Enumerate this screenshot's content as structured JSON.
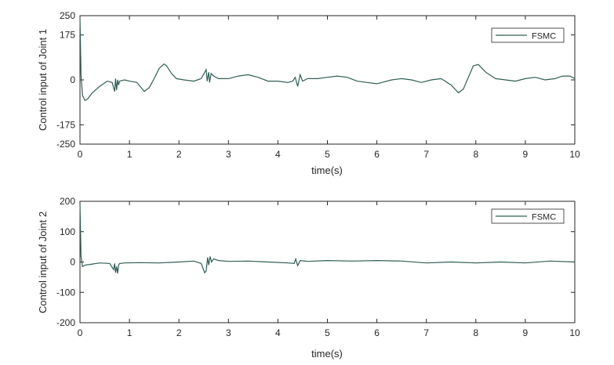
{
  "chart_data": [
    {
      "type": "line",
      "xlabel": "time(s)",
      "ylabel": "Control input of Joint 1",
      "xlim": [
        0,
        10
      ],
      "ylim": [
        -250,
        250
      ],
      "xticks": [
        "0",
        "1",
        "2",
        "3",
        "4",
        "5",
        "6",
        "7",
        "8",
        "9",
        "10"
      ],
      "yticks": [
        "250",
        "175",
        "0",
        "-175",
        "-250"
      ],
      "ytick_values": [
        250,
        175,
        0,
        -175,
        -250
      ],
      "legend_position": "top-right",
      "series": [
        {
          "name": "FSMC",
          "color": "#2e5f55",
          "x": [
            0,
            0.02,
            0.05,
            0.1,
            0.15,
            0.25,
            0.4,
            0.55,
            0.65,
            0.7,
            0.72,
            0.74,
            0.76,
            0.78,
            0.8,
            0.9,
            1.0,
            1.15,
            1.3,
            1.4,
            1.5,
            1.6,
            1.7,
            1.75,
            1.85,
            1.95,
            2.1,
            2.3,
            2.45,
            2.55,
            2.57,
            2.6,
            2.62,
            2.65,
            2.7,
            2.8,
            3.0,
            3.2,
            3.4,
            3.6,
            3.8,
            4.0,
            4.2,
            4.3,
            4.35,
            4.4,
            4.45,
            4.5,
            4.6,
            4.8,
            5.0,
            5.2,
            5.4,
            5.6,
            5.8,
            6.0,
            6.1,
            6.3,
            6.5,
            6.7,
            6.9,
            7.1,
            7.3,
            7.5,
            7.65,
            7.75,
            7.85,
            7.95,
            8.05,
            8.2,
            8.4,
            8.6,
            8.8,
            9.0,
            9.2,
            9.4,
            9.6,
            9.75,
            9.9,
            10.0
          ],
          "y": [
            240,
            20,
            -60,
            -80,
            -75,
            -50,
            -25,
            -5,
            -10,
            -45,
            5,
            -40,
            0,
            -20,
            -5,
            0,
            -5,
            -10,
            -45,
            -30,
            5,
            45,
            62,
            55,
            25,
            5,
            0,
            -5,
            5,
            40,
            -5,
            30,
            -10,
            25,
            15,
            5,
            5,
            15,
            20,
            10,
            -5,
            -5,
            -10,
            -5,
            10,
            -25,
            20,
            -5,
            5,
            5,
            10,
            15,
            10,
            -5,
            -10,
            -15,
            -10,
            0,
            5,
            0,
            -10,
            0,
            5,
            -20,
            -50,
            -35,
            10,
            55,
            60,
            30,
            5,
            0,
            -5,
            5,
            10,
            0,
            5,
            15,
            15,
            5
          ]
        }
      ]
    },
    {
      "type": "line",
      "xlabel": "time(s)",
      "ylabel": "Control input of Joint 2",
      "xlim": [
        0,
        10
      ],
      "ylim": [
        -200,
        200
      ],
      "xticks": [
        "0",
        "1",
        "2",
        "3",
        "4",
        "5",
        "6",
        "7",
        "8",
        "9",
        "10"
      ],
      "yticks": [
        "200",
        "100",
        "0",
        "-100",
        "-200"
      ],
      "ytick_values": [
        200,
        100,
        0,
        -100,
        -200
      ],
      "legend_position": "top-right",
      "series": [
        {
          "name": "FSMC",
          "color": "#2e5f55",
          "x": [
            0,
            0.02,
            0.05,
            0.1,
            0.2,
            0.4,
            0.6,
            0.68,
            0.7,
            0.72,
            0.74,
            0.76,
            0.78,
            0.8,
            0.9,
            1.2,
            1.6,
            2.0,
            2.3,
            2.45,
            2.52,
            2.55,
            2.58,
            2.6,
            2.63,
            2.66,
            2.7,
            2.8,
            3.0,
            3.4,
            3.8,
            4.2,
            4.33,
            4.36,
            4.4,
            4.45,
            4.6,
            5.0,
            5.5,
            6.0,
            6.5,
            7.0,
            7.5,
            8.0,
            8.5,
            9.0,
            9.5,
            10.0
          ],
          "y": [
            190,
            20,
            -15,
            -10,
            -8,
            -3,
            -5,
            -25,
            -5,
            -35,
            -15,
            -38,
            -10,
            -5,
            -3,
            -2,
            -3,
            0,
            3,
            -5,
            -35,
            -30,
            15,
            -10,
            18,
            0,
            10,
            5,
            2,
            3,
            0,
            -3,
            -5,
            10,
            -12,
            5,
            2,
            5,
            3,
            5,
            3,
            -3,
            0,
            -3,
            0,
            -3,
            3,
            0
          ]
        }
      ]
    }
  ]
}
